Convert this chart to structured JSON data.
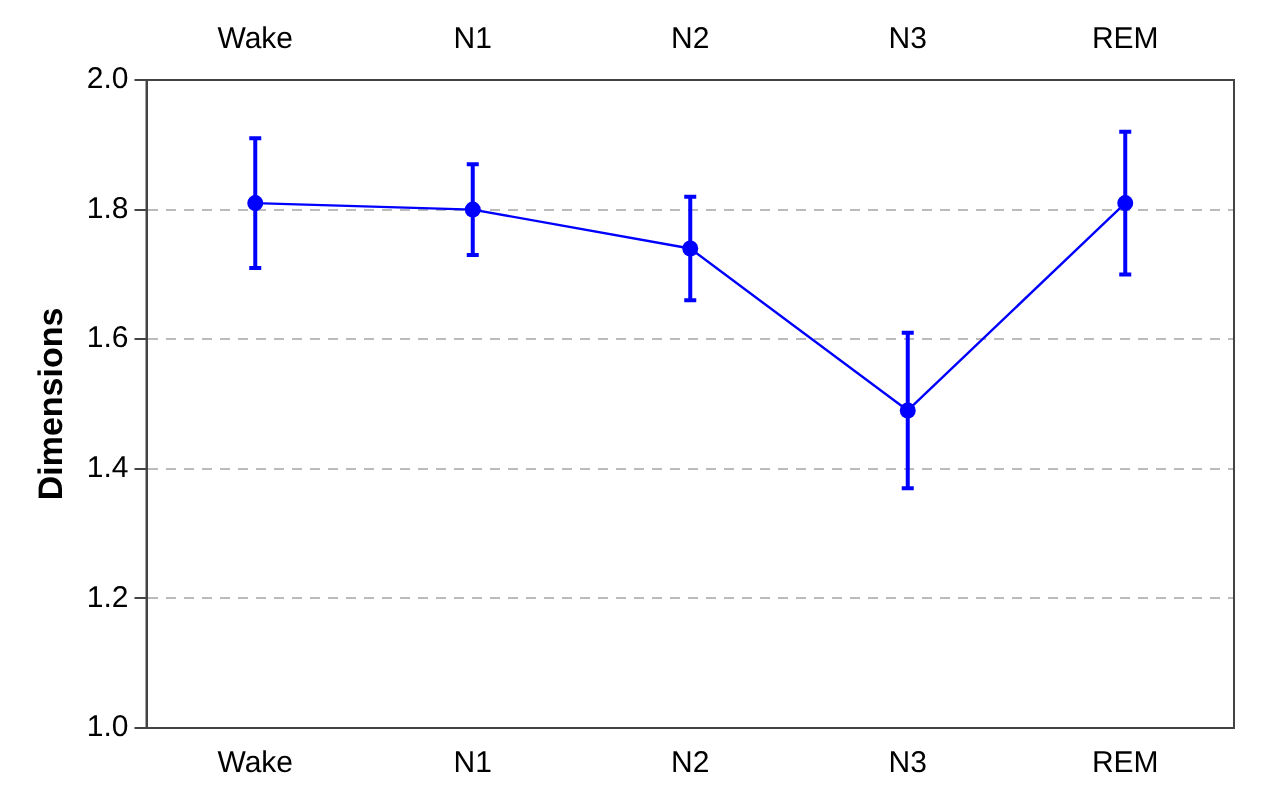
{
  "chart_data": {
    "type": "line",
    "ylabel": "Dimensions",
    "categories": [
      "Wake",
      "N1",
      "N2",
      "N3",
      "REM"
    ],
    "series": [
      {
        "color": "#0000ff",
        "values": [
          1.81,
          1.8,
          1.74,
          1.49,
          1.81
        ],
        "errors": [
          [
            1.71,
            1.91
          ],
          [
            1.73,
            1.87
          ],
          [
            1.66,
            1.82
          ],
          [
            1.37,
            1.61
          ],
          [
            1.7,
            1.92
          ]
        ]
      }
    ],
    "ylim": [
      1.0,
      2.0
    ],
    "yticks": [
      {
        "value": 1.0,
        "label": "1.0"
      },
      1.2,
      1.4,
      1.6,
      1.8,
      {
        "value": 2.0,
        "label": "2.0"
      }
    ],
    "grid": "y",
    "legend": false,
    "marker": "circle",
    "line_style": "solid"
  }
}
